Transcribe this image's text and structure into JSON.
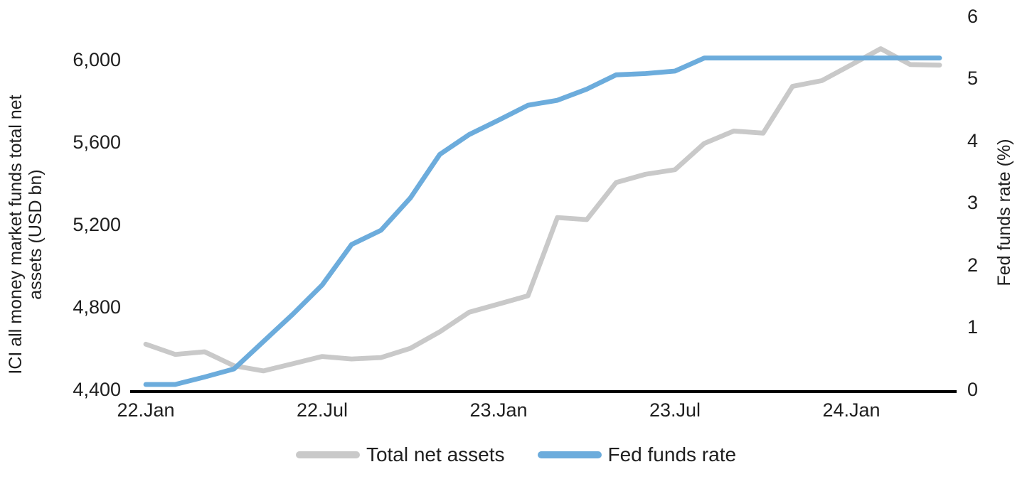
{
  "chart": {
    "left_axis_title_line1": "ICI all money market funds total net",
    "left_axis_title_line2": "assets (USD bn)",
    "right_axis_title": "Fed funds rate (%)",
    "left_ticks": [
      "6,000",
      "5,600",
      "5,200",
      "4,800",
      "4,400"
    ],
    "right_ticks": [
      "6",
      "5",
      "4",
      "3",
      "2",
      "1",
      "0"
    ],
    "x_ticks": [
      "22.Jan",
      "22.Jul",
      "23.Jan",
      "23.Jul",
      "24.Jan"
    ],
    "colors": {
      "total_net_assets": "#C9C9C9",
      "fed_funds_rate": "#6CACDC",
      "axis_line": "#000000",
      "text": "#1F1F1F"
    }
  },
  "chart_data": {
    "type": "line",
    "x_months": [
      "2022-01",
      "2022-02",
      "2022-03",
      "2022-04",
      "2022-05",
      "2022-06",
      "2022-07",
      "2022-08",
      "2022-09",
      "2022-10",
      "2022-11",
      "2022-12",
      "2023-01",
      "2023-02",
      "2023-03",
      "2023-04",
      "2023-05",
      "2023-06",
      "2023-07",
      "2023-08",
      "2023-09",
      "2023-10",
      "2023-11",
      "2023-12",
      "2024-01",
      "2024-02",
      "2024-03",
      "2024-04"
    ],
    "x_tick_labels": [
      "22.Jan",
      "22.Jul",
      "23.Jan",
      "23.Jul",
      "24.Jan"
    ],
    "x_tick_month_indices": [
      0,
      6,
      12,
      18,
      24
    ],
    "series": [
      {
        "name": "Total net assets",
        "axis": "left",
        "color": "#C9C9C9",
        "values": [
          4620,
          4570,
          4583,
          4515,
          4490,
          4525,
          4560,
          4548,
          4555,
          4600,
          4680,
          4775,
          4815,
          4855,
          5235,
          5225,
          5405,
          5445,
          5467,
          5595,
          5655,
          5645,
          5872,
          5900,
          5977,
          6055,
          5978,
          5975
        ]
      },
      {
        "name": "Fed funds rate",
        "axis": "right",
        "color": "#6CACDC",
        "values": [
          0.08,
          0.08,
          0.2,
          0.33,
          0.77,
          1.21,
          1.68,
          2.33,
          2.56,
          3.08,
          3.78,
          4.1,
          4.33,
          4.57,
          4.65,
          4.83,
          5.06,
          5.08,
          5.12,
          5.33,
          5.33,
          5.33,
          5.33,
          5.33,
          5.33,
          5.33,
          5.33,
          5.33
        ]
      }
    ],
    "title": "",
    "left_axis": {
      "label": "ICI all money market funds total net assets (USD bn)",
      "min": 4400,
      "max": 6000,
      "step": 400
    },
    "right_axis": {
      "label": "Fed funds rate (%)",
      "min": 0,
      "max": 6,
      "step": 1
    },
    "grid": false,
    "legend_position": "bottom"
  }
}
